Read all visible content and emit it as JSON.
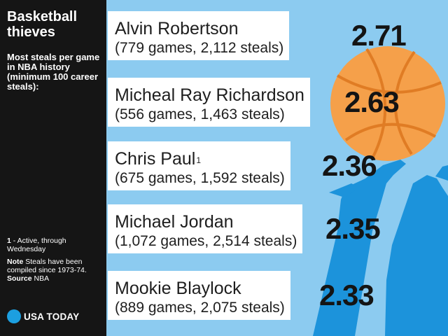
{
  "sidebar": {
    "title": "Basketball thieves",
    "subtitle": "Most steals per game in NBA history (minimum 100 career steals):",
    "footnote_marker": "1",
    "footnote_text": " - Active, through Wednesday",
    "note_label": "Note",
    "note_text": " Steals have been compiled since 1973-74.",
    "source_label": "Source",
    "source_text": " NBA",
    "logo_text": "USA TODAY"
  },
  "colors": {
    "background": "#8ccbf0",
    "sidebar": "#151515",
    "ball": "#f5a04a",
    "hands": "#1c93db",
    "logo": "#1c9fe0"
  },
  "icons": [
    "basketball-icon",
    "reaching-hands-icon",
    "usa-today-logo-icon"
  ],
  "chart_data": {
    "type": "bar",
    "title": "Basketball thieves",
    "categories": [
      "Alvin Robertson",
      "Micheal Ray Richardson",
      "Chris Paul",
      "Michael Jordan",
      "Mookie Blaylock"
    ],
    "values": [
      2.71,
      2.63,
      2.36,
      2.35,
      2.33
    ],
    "value_labels": [
      "2.71",
      "2.63",
      "2.36",
      "2.35",
      "2.33"
    ],
    "details": [
      "(779 games, 2,112 steals)",
      "(556 games, 1,463 steals)",
      "(675 games, 1,592 steals)",
      "(1,072 games, 2,514 steals)",
      "(889 games, 2,075 steals)"
    ],
    "footnote_refs": [
      "",
      "",
      "1",
      "",
      ""
    ],
    "xlabel": "",
    "ylabel": ""
  }
}
